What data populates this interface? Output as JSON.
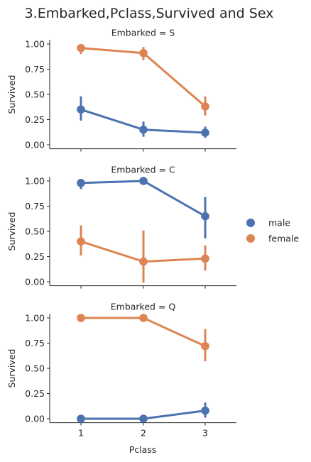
{
  "chart_data": {
    "type": "line",
    "title": "3.Embarked,Pclass,Survived and Sex",
    "xlabel": "Pclass",
    "ylabel": "Survived",
    "categories": [
      "1",
      "2",
      "3"
    ],
    "ylim": [
      -0.04,
      1.04
    ],
    "yticks": [
      "0.00",
      "0.25",
      "0.50",
      "0.75",
      "1.00"
    ],
    "legend": {
      "placement": "right",
      "entries": [
        {
          "name": "male",
          "color": "#4c72b0"
        },
        {
          "name": "female",
          "color": "#dd8452"
        }
      ]
    },
    "panels": [
      {
        "label": "Embarked = S",
        "series": [
          {
            "name": "male",
            "color": "#4c72b0",
            "values": [
              0.35,
              0.15,
              0.12
            ],
            "ci_low": [
              0.24,
              0.08,
              0.07
            ],
            "ci_high": [
              0.48,
              0.23,
              0.18
            ]
          },
          {
            "name": "female",
            "color": "#dd8452",
            "values": [
              0.96,
              0.91,
              0.38
            ],
            "ci_low": [
              0.9,
              0.84,
              0.29
            ],
            "ci_high": [
              1.0,
              0.97,
              0.48
            ]
          }
        ]
      },
      {
        "label": "Embarked = C",
        "series": [
          {
            "name": "male",
            "color": "#4c72b0",
            "values": [
              0.98,
              1.0,
              0.65
            ],
            "ci_low": [
              0.92,
              1.0,
              0.43
            ],
            "ci_high": [
              1.0,
              1.0,
              0.84
            ]
          },
          {
            "name": "female",
            "color": "#dd8452",
            "values": [
              0.4,
              0.2,
              0.23
            ],
            "ci_low": [
              0.26,
              -0.01,
              0.11
            ],
            "ci_high": [
              0.56,
              0.51,
              0.36
            ]
          }
        ]
      },
      {
        "label": "Embarked = Q",
        "series": [
          {
            "name": "male",
            "color": "#4c72b0",
            "values": [
              0.0,
              0.0,
              0.08
            ],
            "ci_low": [
              0.0,
              0.0,
              0.01
            ],
            "ci_high": [
              0.0,
              0.0,
              0.16
            ]
          },
          {
            "name": "female",
            "color": "#dd8452",
            "values": [
              1.0,
              1.0,
              0.72
            ],
            "ci_low": [
              1.0,
              1.0,
              0.57
            ],
            "ci_high": [
              1.0,
              1.0,
              0.89
            ]
          }
        ]
      }
    ]
  }
}
